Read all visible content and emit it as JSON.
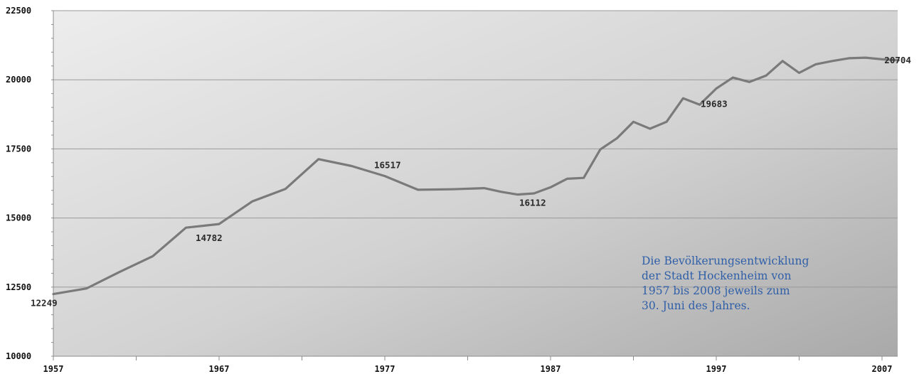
{
  "chart_data": {
    "type": "line",
    "title": "",
    "xlabel": "",
    "ylabel": "",
    "xlim": [
      1957,
      2008
    ],
    "ylim": [
      10000,
      22500
    ],
    "y_ticks": [
      10000,
      12500,
      15000,
      17500,
      20000,
      22500
    ],
    "x_ticks": [
      1957,
      1967,
      1977,
      1987,
      1997,
      2007
    ],
    "grid": true,
    "legend": "none",
    "line_color": "#7a7a7a",
    "series": [
      {
        "x": [
          1957,
          1959,
          1961,
          1963,
          1965,
          1967,
          1969,
          1971,
          1973,
          1975,
          1977,
          1979,
          1981,
          1983,
          1984,
          1985,
          1986,
          1987,
          1988,
          1989,
          1990,
          1991,
          1992,
          1993,
          1994,
          1995,
          1996,
          1997,
          1998,
          1999,
          2000,
          2001,
          2002,
          2003,
          2004,
          2005,
          2006,
          2007,
          2008
        ],
        "values": [
          12249,
          12450,
          13050,
          13620,
          14650,
          14782,
          15600,
          16050,
          17130,
          16880,
          16517,
          16020,
          16040,
          16080,
          15950,
          15850,
          15890,
          16112,
          16420,
          16450,
          17480,
          17880,
          18480,
          18230,
          18480,
          19330,
          19100,
          19683,
          20080,
          19920,
          20150,
          20680,
          20250,
          20560,
          20680,
          20780,
          20800,
          20740,
          20704
        ]
      }
    ],
    "annotations": [
      {
        "x": 1957,
        "y": 12249,
        "text": "12249"
      },
      {
        "x": 1967,
        "y": 14782,
        "text": "14782"
      },
      {
        "x": 1977,
        "y": 16517,
        "text": "16517"
      },
      {
        "x": 1987,
        "y": 16112,
        "text": "16112"
      },
      {
        "x": 1997,
        "y": 19683,
        "text": "19683"
      },
      {
        "x": 2008,
        "y": 20704,
        "text": "20704"
      }
    ]
  },
  "caption": {
    "lines": [
      "Die Bevölkerungsentwicklung",
      "der Stadt Hockenheim von",
      "1957 bis 2008 jeweils zum",
      "30. Juni des Jahres."
    ],
    "color": "#2f5fa8"
  }
}
